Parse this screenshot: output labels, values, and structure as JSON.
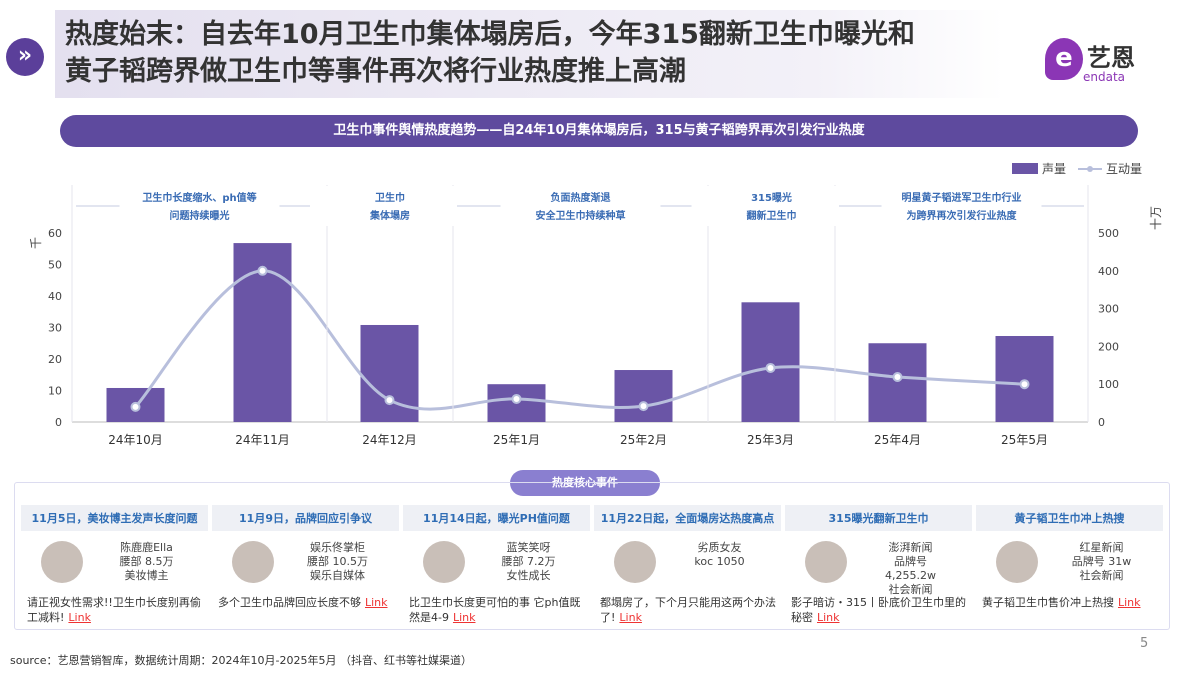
{
  "header": {
    "title_line1": "热度始末：自去年10月卫生巾集体塌房后，今年315翻新卫生巾曝光和",
    "title_line2": "黄子韬跨界做卫生巾等事件再次将行业热度推上高潮",
    "icon": "double-chevron-right-icon",
    "logo_cn": "艺恩",
    "logo_en": "endata"
  },
  "banner": "卫生巾事件舆情热度趋势——自24年10月集体塌房后，315与黄子韬跨界再次引发行业热度",
  "chart_data": {
    "type": "bar+line",
    "categories": [
      "24年10月",
      "24年11月",
      "24年12月",
      "25年1月",
      "25年2月",
      "25年3月",
      "25年4月",
      "25年5月"
    ],
    "series": [
      {
        "name": "声量",
        "type": "bar",
        "axis": "left",
        "color": "#6a55a6",
        "values": [
          10.8,
          56.8,
          30.8,
          12,
          16.5,
          38,
          25,
          27.3
        ]
      },
      {
        "name": "互动量",
        "type": "line",
        "axis": "right",
        "color": "#b8bfdc",
        "values": [
          40,
          400,
          58,
          61,
          42,
          143,
          119,
          100
        ]
      }
    ],
    "y_left": {
      "label": "千",
      "ticks": [
        0,
        10,
        20,
        30,
        40,
        50,
        60
      ]
    },
    "y_right": {
      "label": "十万",
      "ticks": [
        0,
        100,
        200,
        300,
        400,
        500
      ]
    },
    "legend": "top-right",
    "phases": [
      {
        "line1": "卫生巾长度缩水、ph值等",
        "line2": "问题持续曝光"
      },
      {
        "line1": "卫生巾",
        "line2": "集体塌房"
      },
      {
        "line1": "负面热度渐退",
        "line2": "安全卫生巾持续种草"
      },
      {
        "line1": "315曝光",
        "line2": "翻新卫生巾"
      },
      {
        "line1": "明星黄子韬进军卫生巾行业",
        "line2": "为跨界再次引发行业热度"
      }
    ]
  },
  "events_title": "热度核心事件",
  "events": [
    {
      "head": "11月5日，美妆博主发声长度问题",
      "info": [
        "陈鹿鹿Ella",
        "腰部 8.5万",
        "美妆博主"
      ],
      "desc": "请正视女性需求!!卫生巾长度别再偷工减料!",
      "link": "Link"
    },
    {
      "head": "11月9日，品牌回应引争议",
      "info": [
        "娱乐佟掌柜",
        "腰部 10.5万",
        "娱乐自媒体"
      ],
      "desc": "多个卫生巾品牌回应长度不够",
      "link": "Link"
    },
    {
      "head": "11月14日起，曝光PH值问题",
      "info": [
        "蓝笑笑呀",
        "腰部 7.2万",
        "女性成长"
      ],
      "desc": "比卫生巾长度更可怕的事 它ph值既然是4-9",
      "link": "Link"
    },
    {
      "head": "11月22日起，全面塌房达热度高点",
      "info": [
        "劣质女友",
        "koc 1050"
      ],
      "desc": "都塌房了，下个月只能用这两个办法了!",
      "link": "Link"
    },
    {
      "head": "315曝光翻新卫生巾",
      "info": [
        "澎湃新闻",
        "品牌号",
        "4,255.2w",
        "社会新闻"
      ],
      "desc": "影子暗访・315丨卧底价卫生巾里的秘密",
      "link": "Link"
    },
    {
      "head": "黄子韬卫生巾冲上热搜",
      "info": [
        "红星新闻",
        "品牌号 31w",
        "社会新闻"
      ],
      "desc": "黄子韬卫生巾售价冲上热搜",
      "link": "Link"
    }
  ],
  "page_number": "5",
  "source": "source：艺恩营销智库，数据统计周期：2024年10月-2025年5月 （抖音、红书等社媒渠道）"
}
